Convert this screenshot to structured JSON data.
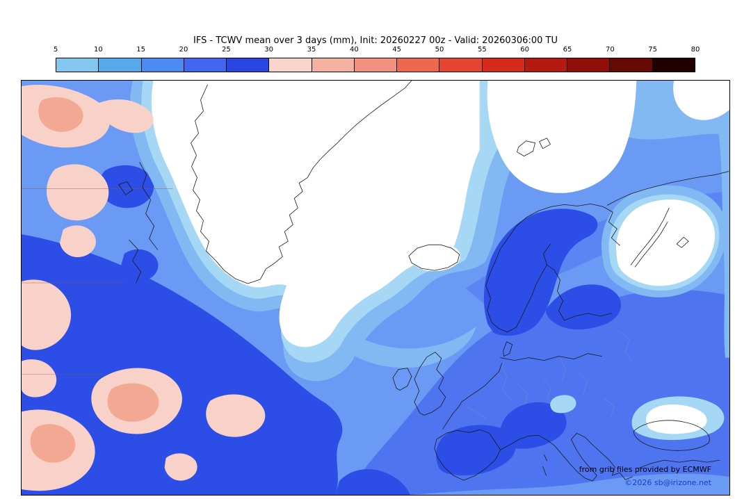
{
  "title": "IFS - TCWV mean over 3 days (mm), Init: 20260227 00z - Valid: 20260306:00 TU",
  "colorbar": {
    "tick_labels": [
      "5",
      "10",
      "15",
      "20",
      "25",
      "30",
      "35",
      "40",
      "45",
      "50",
      "55",
      "60",
      "65",
      "70",
      "75",
      "80"
    ],
    "cell_colors": [
      "#84c8f0",
      "#58a9ec",
      "#4b8bf2",
      "#4166f0",
      "#2b46e0",
      "#f8d4ca",
      "#f5b2a0",
      "#f1907e",
      "#ec6950",
      "#e44532",
      "#d52a1c",
      "#b41a0f",
      "#910f08",
      "#680a04",
      "#200100"
    ]
  },
  "map": {
    "credits": {
      "line1": "from grib files provided by ECMWF",
      "line2": "©2026 sb@irizone.net"
    },
    "region_colors": {
      "tcwv_5_10": "#a6d8f6",
      "tcwv_10_15": "#82b9f3",
      "tcwv_15_20": "#6b9af4",
      "tcwv_20_25": "#4f74f0",
      "tcwv_25_30": "#2c4ee6",
      "tcwv_30_35": "#f8d2c8",
      "tcwv_35_40": "#f3a893",
      "dry_white": "#ffffff",
      "coastline": "#1a1a1a",
      "country_border": "#999999",
      "graticule": "#a0522d",
      "credit_text": "#000000",
      "credit_link": "#2038c8"
    }
  }
}
